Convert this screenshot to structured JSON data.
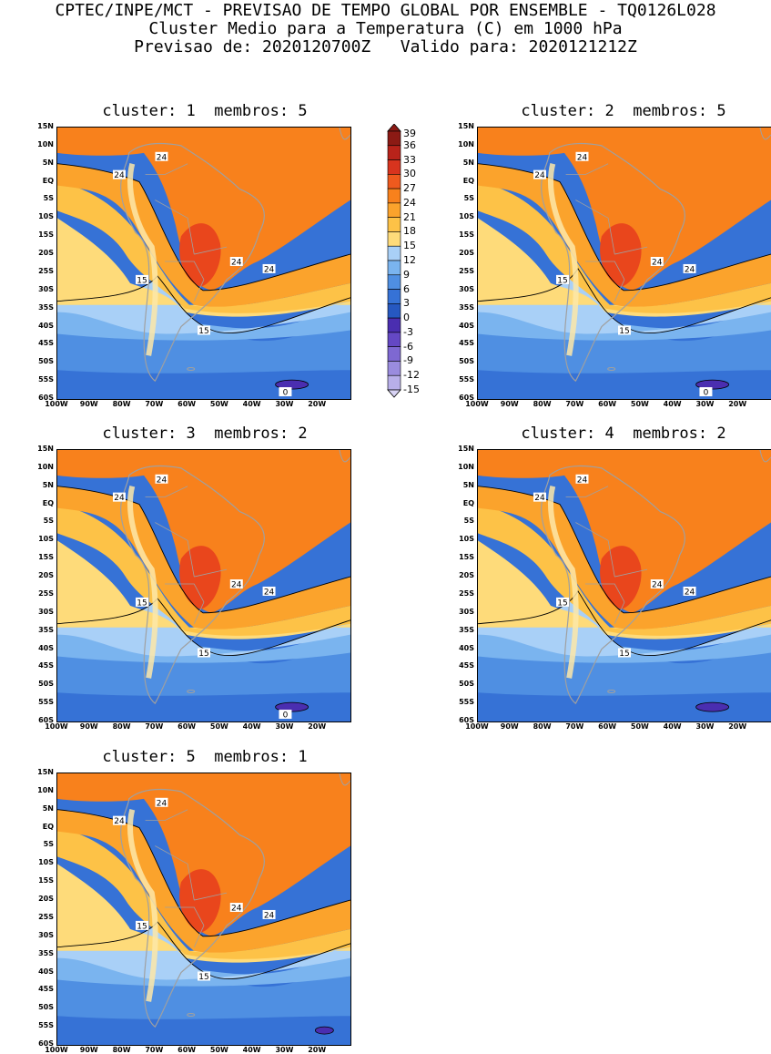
{
  "header": {
    "line1": "CPTEC/INPE/MCT - PREVISAO DE TEMPO GLOBAL POR ENSEMBLE - TQ0126L028",
    "line2": "Cluster Medio para a Temperatura (C) em 1000 hPa",
    "line3": "Previsao de: 2020120700Z   Valido para: 2020121212Z"
  },
  "panels": [
    {
      "title": "cluster: 1  membros: 5",
      "contour_labels": [
        "24",
        "24",
        "24",
        "24",
        "15",
        "15",
        "0"
      ]
    },
    {
      "title": "cluster: 2  membros: 5",
      "contour_labels": [
        "24",
        "24",
        "24",
        "24",
        "15",
        "15",
        "0"
      ]
    },
    {
      "title": "cluster: 3  membros: 2",
      "contour_labels": [
        "24",
        "24",
        "24",
        "24",
        "15",
        "15",
        "0"
      ]
    },
    {
      "title": "cluster: 4  membros: 2",
      "contour_labels": [
        "24",
        "24",
        "24",
        "24",
        "15",
        "15"
      ]
    },
    {
      "title": "cluster: 5  membros: 1",
      "contour_labels": [
        "24",
        "24",
        "24",
        "24",
        "15",
        "15"
      ]
    }
  ],
  "lat_labels": [
    "15N",
    "10N",
    "5N",
    "EQ",
    "5S",
    "10S",
    "15S",
    "20S",
    "25S",
    "30S",
    "35S",
    "40S",
    "45S",
    "50S",
    "55S",
    "60S"
  ],
  "lon_labels": [
    "100W",
    "90W",
    "80W",
    "70W",
    "60W",
    "50W",
    "40W",
    "30W",
    "20W"
  ],
  "colorbar": {
    "labels": [
      "39",
      "36",
      "33",
      "30",
      "27",
      "24",
      "21",
      "18",
      "15",
      "12",
      "9",
      "6",
      "3",
      "0",
      "-3",
      "-6",
      "-9",
      "-12",
      "-15"
    ],
    "colors": [
      "#8c1a14",
      "#b8231a",
      "#d8341e",
      "#ee5a1e",
      "#f8811c",
      "#fba32c",
      "#fdc247",
      "#fedb7a",
      "#a9d0f7",
      "#7ab4ef",
      "#4f8fe2",
      "#3672d6",
      "#2658c1",
      "#4a2eb0",
      "#6448c4",
      "#7e68d2",
      "#9a8cde",
      "#b8afe9",
      "#d8d3f4"
    ]
  },
  "field_colors": {
    "t30": "#e9461c",
    "t27": "#f8811c",
    "t24": "#fba32c",
    "t21": "#fdc247",
    "t18": "#fedb7a",
    "t15": "#a9d0f7",
    "t12": "#7ab4ef",
    "t9": "#4f8fe2",
    "t6": "#3672d6",
    "t0": "#4a2eb0",
    "land_lines": "#a0a0a0"
  }
}
